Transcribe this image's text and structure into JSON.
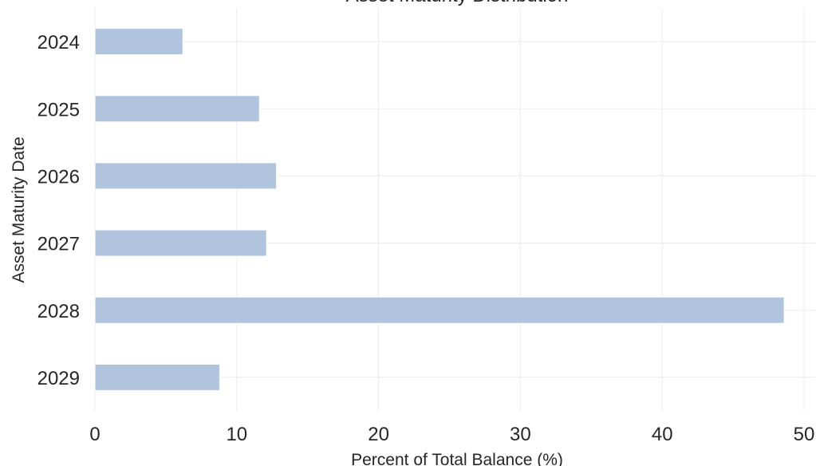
{
  "chart_data": {
    "type": "bar",
    "orientation": "horizontal",
    "title": "Asset Maturity Distribution",
    "xlabel": "Percent of Total Balance (%)",
    "ylabel": "Asset Maturity Date",
    "categories": [
      "2024",
      "2025",
      "2026",
      "2027",
      "2028",
      "2029"
    ],
    "values": [
      6.2,
      11.6,
      12.8,
      12.1,
      48.6,
      8.8
    ],
    "xlim": [
      0,
      50
    ],
    "xticks": [
      "0",
      "10",
      "20",
      "30",
      "40",
      "50"
    ],
    "grid": true,
    "bar_color": "#b0c4de",
    "legend": "none"
  }
}
